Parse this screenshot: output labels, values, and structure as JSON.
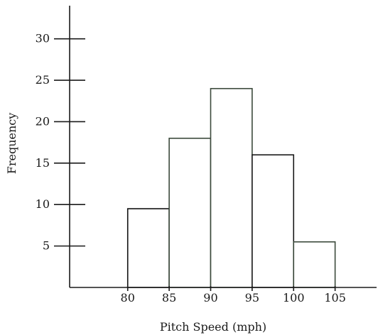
{
  "chart_data": {
    "type": "bar",
    "histogram": true,
    "bins": [
      {
        "start": 80,
        "end": 85,
        "value": 9.5
      },
      {
        "start": 85,
        "end": 90,
        "value": 18
      },
      {
        "start": 90,
        "end": 95,
        "value": 24
      },
      {
        "start": 95,
        "end": 100,
        "value": 16
      },
      {
        "start": 100,
        "end": 105,
        "value": 5.5
      }
    ],
    "xticks": [
      80,
      85,
      90,
      95,
      100,
      105
    ],
    "yticks": [
      5,
      10,
      15,
      20,
      25,
      30
    ],
    "xlabel": "Pitch Speed (mph)",
    "ylabel": "Frequency",
    "xlim": [
      73,
      110
    ],
    "ylim": [
      0,
      34
    ],
    "grid": false,
    "bar_fill": "#ffffff",
    "bar_stroke_colors": [
      "#111111",
      "#3c4a3c",
      "#3c4a3c",
      "#1a1a1a",
      "#3c4a3c"
    ],
    "axis_color": "#1a1a1a"
  }
}
